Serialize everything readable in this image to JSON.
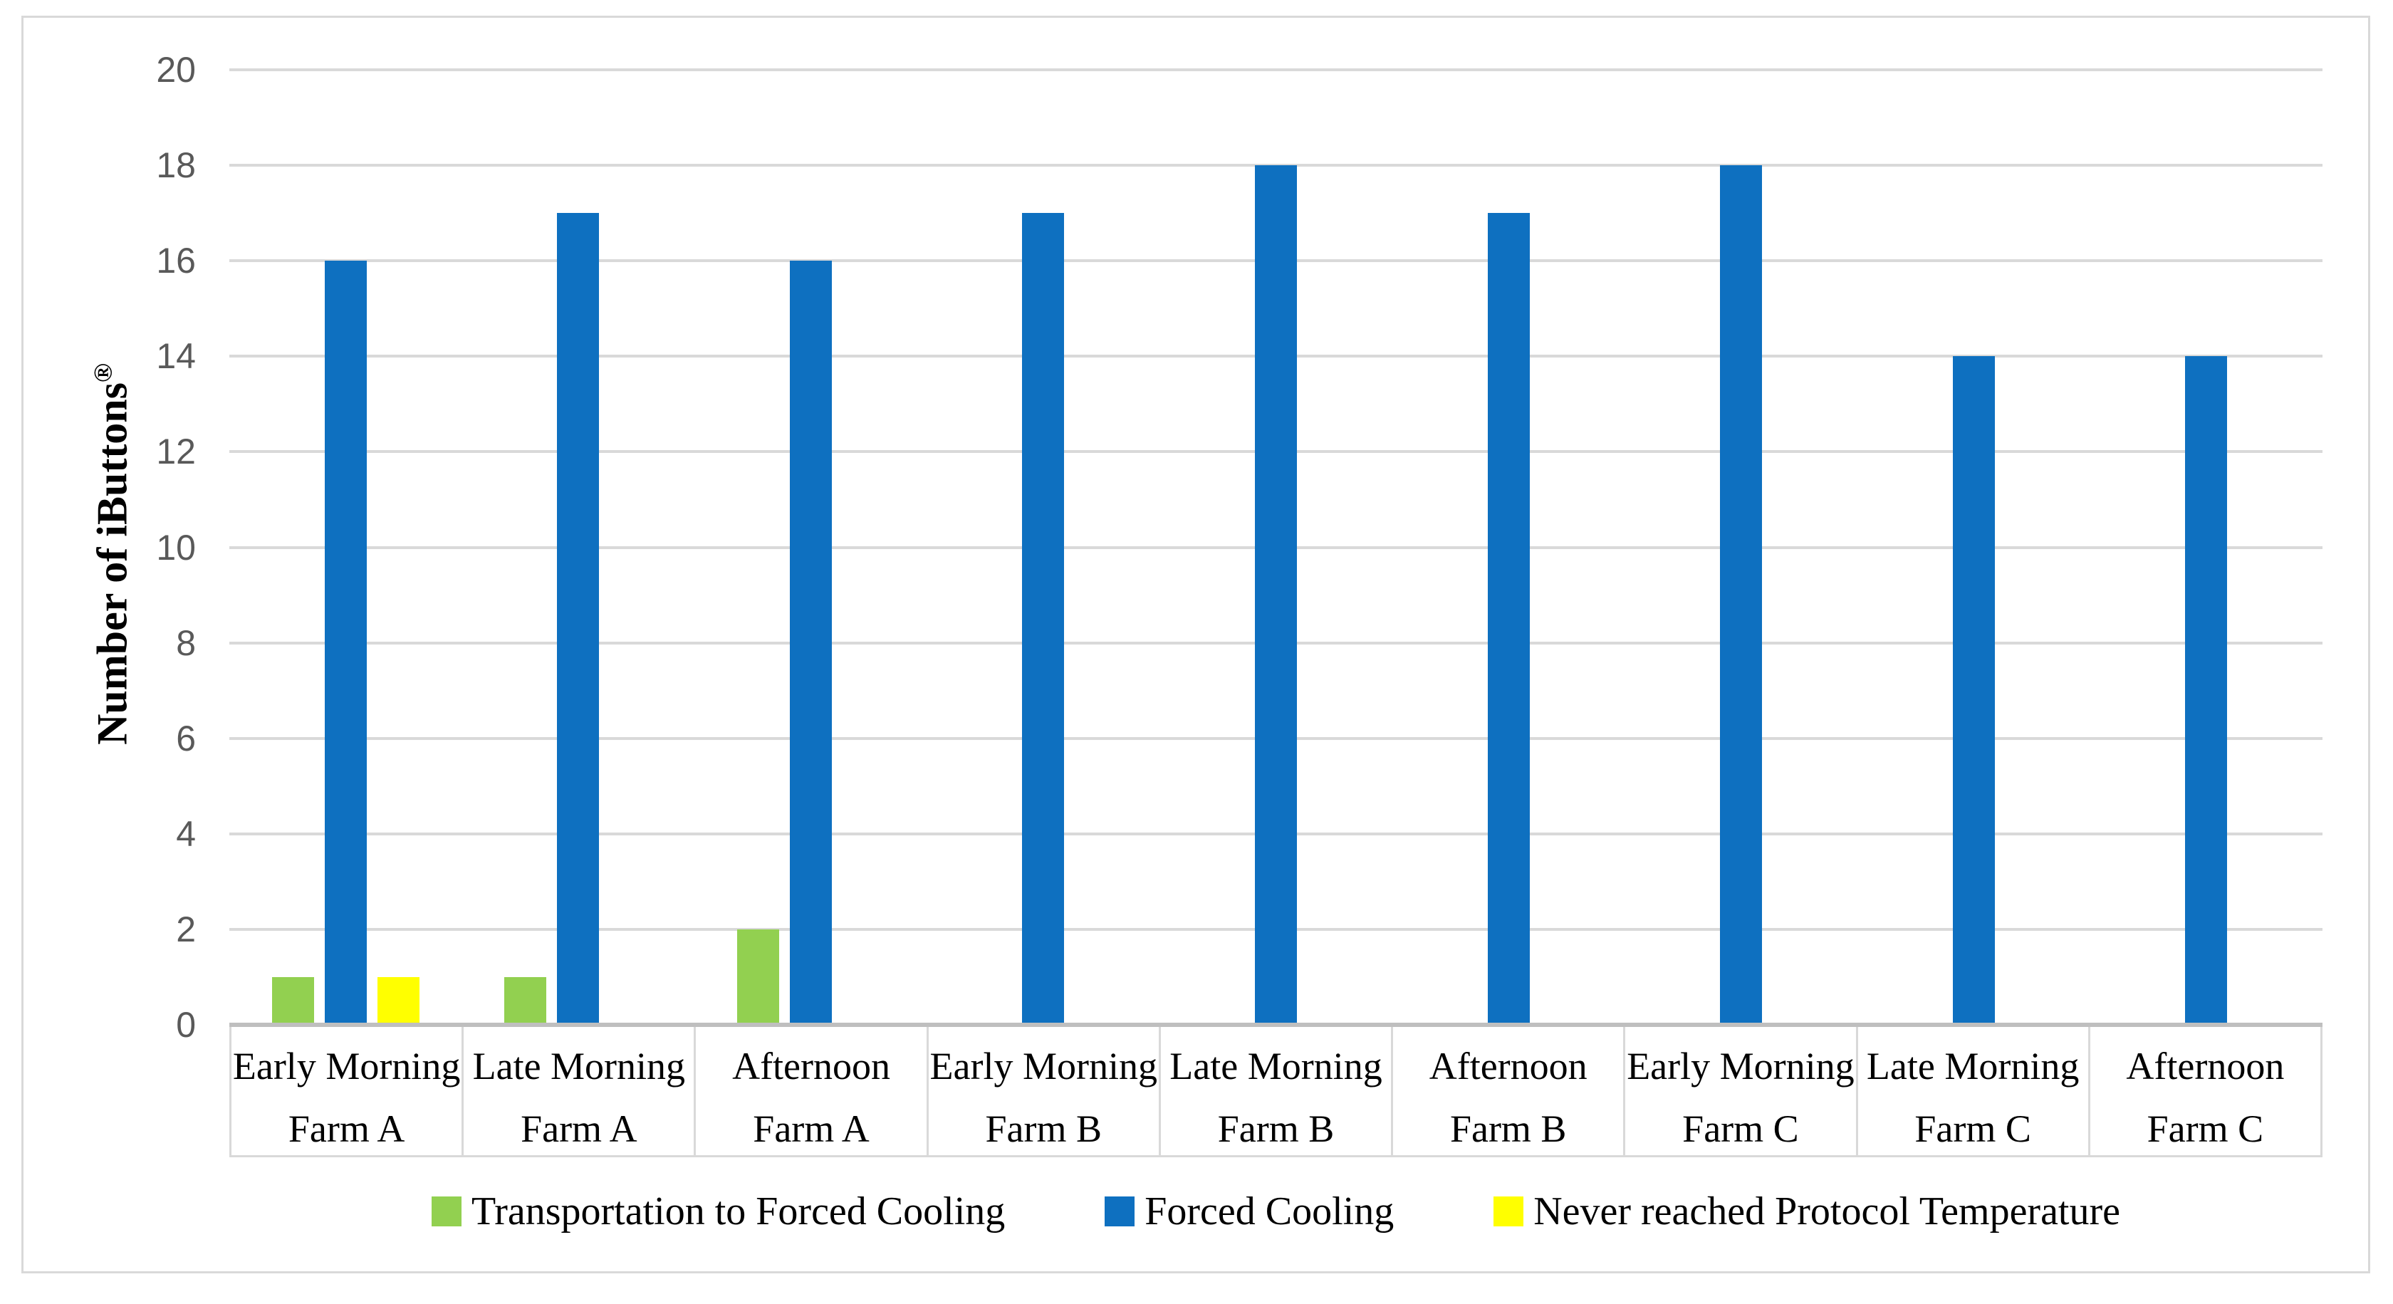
{
  "chart_data": {
    "type": "bar",
    "title": "",
    "xlabel": "",
    "ylabel": "Number of iButtons",
    "ylabel_superscript": "®",
    "ylim": [
      0,
      20
    ],
    "yticks": [
      0,
      2,
      4,
      6,
      8,
      10,
      12,
      14,
      16,
      18,
      20
    ],
    "grid": true,
    "legend_position": "bottom",
    "categories": [
      {
        "line1": "Early Morning",
        "line2": "Farm A"
      },
      {
        "line1": "Late Morning",
        "line2": "Farm A"
      },
      {
        "line1": "Afternoon",
        "line2": "Farm A"
      },
      {
        "line1": "Early Morning",
        "line2": "Farm B"
      },
      {
        "line1": "Late Morning",
        "line2": "Farm B"
      },
      {
        "line1": "Afternoon",
        "line2": "Farm B"
      },
      {
        "line1": "Early Morning",
        "line2": "Farm C"
      },
      {
        "line1": "Late Morning",
        "line2": "Farm C"
      },
      {
        "line1": "Afternoon",
        "line2": "Farm C"
      }
    ],
    "series": [
      {
        "name": "Transportation to Forced Cooling",
        "color": "#92D050",
        "values": [
          1,
          1,
          2,
          0,
          0,
          0,
          0,
          0,
          0
        ]
      },
      {
        "name": "Forced Cooling",
        "color": "#0E70C0",
        "values": [
          16,
          17,
          16,
          17,
          18,
          17,
          18,
          14,
          14
        ]
      },
      {
        "name": "Never reached Protocol Temperature",
        "color": "#FFFF00",
        "values": [
          1,
          0,
          0,
          0,
          0,
          0,
          0,
          0,
          0
        ]
      }
    ],
    "colors": {
      "gridline": "#D9D9D9",
      "axis_line": "#BFBFBF",
      "tick_label": "#595959",
      "category_label": "#000000",
      "figure_border": "#D9D9D9",
      "background": "#FFFFFF"
    }
  }
}
